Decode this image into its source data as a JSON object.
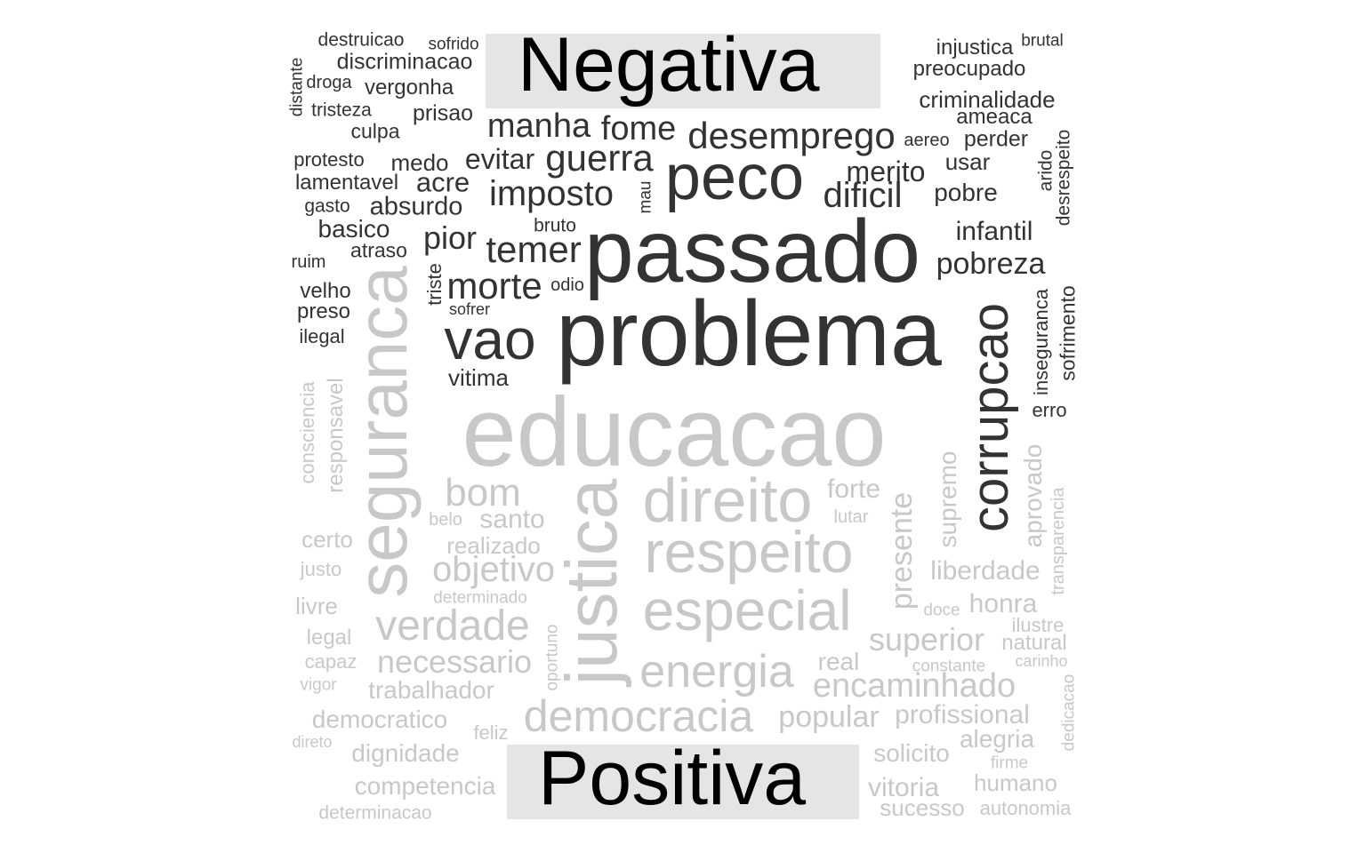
{
  "labels": {
    "negative": "Negativa",
    "positive": "Positiva"
  },
  "colors": {
    "negative_words": "#333333",
    "positive_words": "#c8c8c8",
    "label_box": "#e5e5e5"
  },
  "words": {
    "negative": [
      "destruicao",
      "sofrido",
      "discriminacao",
      "distante",
      "droga",
      "vergonha",
      "tristeza",
      "prisao",
      "culpa",
      "manha",
      "fome",
      "desemprego",
      "injustica",
      "brutal",
      "preocupado",
      "criminalidade",
      "ameaca",
      "aereo",
      "perder",
      "usar",
      "arido",
      "desrespeito",
      "protesto",
      "medo",
      "evitar",
      "guerra",
      "peco",
      "merito",
      "lamentavel",
      "acre",
      "imposto",
      "mau",
      "dificil",
      "pobre",
      "gasto",
      "absurdo",
      "basico",
      "bruto",
      "passado",
      "infantil",
      "atraso",
      "pior",
      "temer",
      "pobreza",
      "ruim",
      "triste",
      "morte",
      "odio",
      "velho",
      "sofrer",
      "preso",
      "vao",
      "problema",
      "corrupcao",
      "inseguranca",
      "sofrimento",
      "ilegal",
      "vitima",
      "erro"
    ],
    "positive": [
      "educacao",
      "seguranca",
      "consciencia",
      "responsavel",
      "bom",
      "direito",
      "forte",
      "belo",
      "santo",
      "lutar",
      "supremo",
      "aprovado",
      "justica",
      "presente",
      "certo",
      "realizado",
      "respeito",
      "transparencia",
      "justo",
      "objetivo",
      "liberdade",
      "determinado",
      "livre",
      "verdade",
      "especial",
      "doce",
      "honra",
      "ilustre",
      "legal",
      "oportuno",
      "superior",
      "natural",
      "capaz",
      "necessario",
      "carinho",
      "constante",
      "real",
      "energia",
      "vigor",
      "trabalhador",
      "encaminhado",
      "dedicacao",
      "democratico",
      "democracia",
      "popular",
      "profissional",
      "direto",
      "feliz",
      "alegria",
      "dignidade",
      "solicito",
      "firme",
      "humano",
      "competencia",
      "vitoria",
      "sucesso",
      "autonomia",
      "determinacao"
    ]
  }
}
